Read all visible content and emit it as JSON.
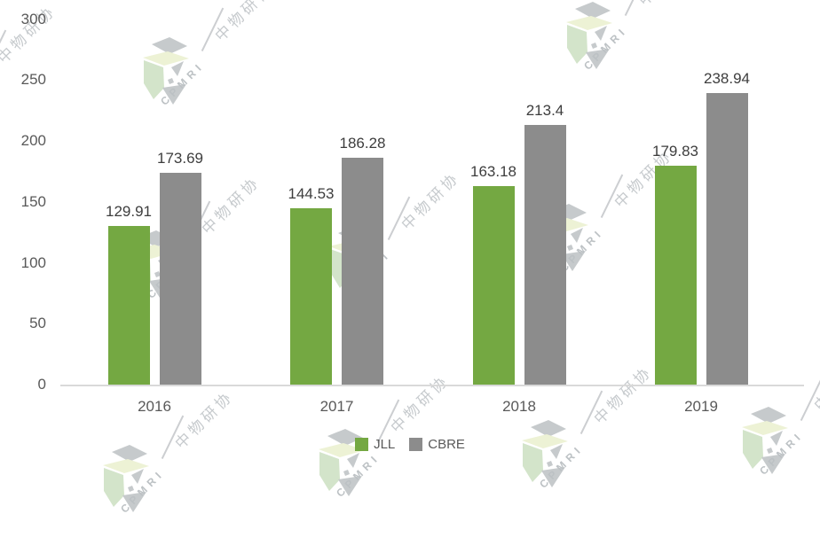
{
  "chart_data": {
    "type": "bar",
    "title": "",
    "xlabel": "",
    "ylabel": "",
    "categories": [
      "2016",
      "2017",
      "2018",
      "2019"
    ],
    "series": [
      {
        "name": "JLL",
        "color": "#74A842",
        "values": [
          129.91,
          144.53,
          163.18,
          179.83
        ]
      },
      {
        "name": "CBRE",
        "color": "#8C8C8C",
        "values": [
          173.69,
          186.28,
          213.4,
          238.94
        ]
      }
    ],
    "ylim": [
      0,
      300
    ],
    "yticks": [
      0,
      50,
      100,
      150,
      200,
      250,
      300
    ],
    "grid": false,
    "legend_position": "bottom",
    "axis_line_color": "#D9D9D9",
    "tick_label_color": "#595959",
    "value_label_color": "#3D3D3D"
  },
  "watermark": {
    "brand_latin": "CPMRI",
    "brand_cn": "中物研协",
    "logo_colors": {
      "gray": "#c6cacc",
      "pale_yellow": "#edf2d5",
      "pale_green": "#d3e4ca"
    }
  }
}
